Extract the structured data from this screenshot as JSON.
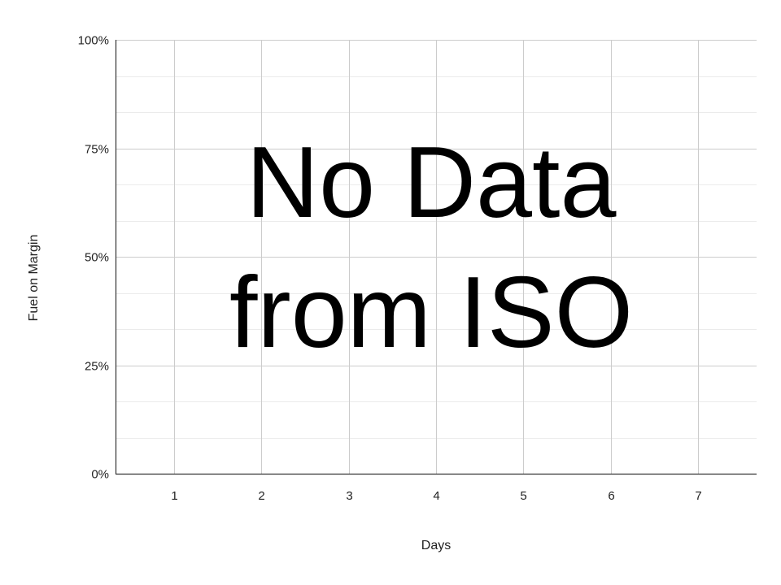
{
  "chart_data": {
    "type": "line",
    "title": "",
    "xlabel": "Days",
    "ylabel": "Fuel on Margin",
    "x_ticks": [
      "1",
      "2",
      "3",
      "4",
      "5",
      "6",
      "7"
    ],
    "y_ticks": [
      "0%",
      "25%",
      "50%",
      "75%",
      "100%"
    ],
    "y_tick_values": [
      0,
      25,
      50,
      75,
      100
    ],
    "ylim": [
      0,
      100
    ],
    "xlim": [
      0.33,
      7.67
    ],
    "y_minor_step": 8.333,
    "grid": true,
    "series": [],
    "annotation": {
      "lines": [
        "No Data",
        "from ISO"
      ]
    }
  },
  "colors": {
    "major_grid": "#cccccc",
    "minor_grid": "#ebebeb",
    "axis": "#333333",
    "text": "#000000"
  }
}
